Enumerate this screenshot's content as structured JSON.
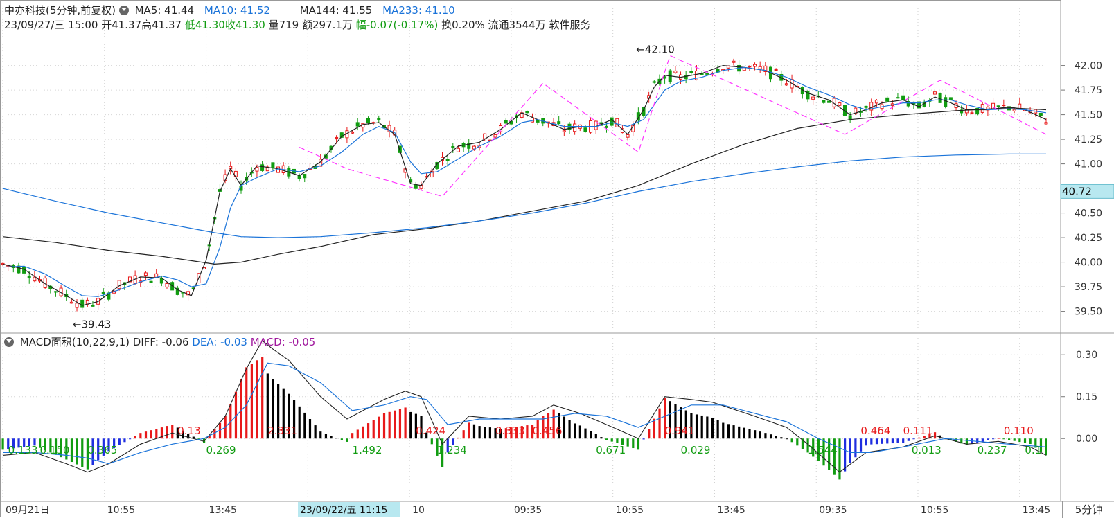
{
  "header": {
    "title": "中亦科技(5分钟,前复权)",
    "ma5": "MA5: 41.44",
    "ma10": "MA10: 41.52",
    "ma144": "MA144: 41.55",
    "ma233": "MA233: 41.10",
    "datetime": "23/09/27/三 15:00",
    "open": "开41.37",
    "high": "高41.37",
    "low": "低41.30",
    "close": "收41.30",
    "volume": "量719",
    "amount": "额297.1万",
    "change": "幅-0.07(-0.17%)",
    "turnover": "换0.20%",
    "float": "流通3544万",
    "sector": "软件服务"
  },
  "macd_header": {
    "name": "MACD面积(10,22,9,1)",
    "diff": "DIFF: -0.06",
    "dea": "DEA: -0.03",
    "macd": "MACD: -0.05"
  },
  "timeframe_tab": "5分钟",
  "cursor_price": "40.72",
  "cursor_date": "23/09/22/五 11:15",
  "colors": {
    "up": "#e8191a",
    "down": "#119c11",
    "ma_black": "#222222",
    "ma_blue": "#1a73d9",
    "macd_blue": "#1f2ee0",
    "zigzag": "#ff33ff",
    "cursor": "#b8e8f0"
  },
  "chart_data": {
    "type": "candlestick",
    "price_axis": {
      "ticks": [
        "42.00",
        "41.75",
        "41.50",
        "41.25",
        "41.00",
        "40.75",
        "40.50",
        "40.25",
        "40.00",
        "39.75",
        "39.50"
      ],
      "range": [
        39.3,
        42.3
      ]
    },
    "macd_axis": {
      "ticks": [
        "0.30",
        "0.15",
        "0.00"
      ],
      "range": [
        -0.22,
        0.36
      ]
    },
    "x_labels": [
      "09月21日",
      "10:55",
      "13:45",
      "09:35",
      "10",
      "09:35",
      "10:55",
      "13:45",
      "09:35",
      "10:55",
      "13:45",
      "09:35",
      "10:55",
      "13:45"
    ],
    "annotations": {
      "low": "39.43",
      "high": "42.10"
    },
    "series": [
      {
        "name": "MA5",
        "points": [
          [
            0,
            39.98
          ],
          [
            20,
            39.93
          ],
          [
            40,
            39.78
          ],
          [
            60,
            39.66
          ],
          [
            75,
            39.56
          ],
          [
            90,
            39.6
          ],
          [
            110,
            39.76
          ],
          [
            130,
            39.85
          ],
          [
            150,
            39.84
          ],
          [
            165,
            39.72
          ],
          [
            178,
            39.66
          ],
          [
            192,
            40.02
          ],
          [
            205,
            40.72
          ],
          [
            215,
            40.95
          ],
          [
            225,
            40.78
          ],
          [
            240,
            40.98
          ],
          [
            260,
            40.95
          ],
          [
            280,
            40.88
          ],
          [
            300,
            41.02
          ],
          [
            320,
            41.28
          ],
          [
            340,
            41.4
          ],
          [
            355,
            41.42
          ],
          [
            370,
            41.3
          ],
          [
            385,
            40.8
          ],
          [
            395,
            40.78
          ],
          [
            410,
            41.0
          ],
          [
            430,
            41.18
          ],
          [
            450,
            41.22
          ],
          [
            470,
            41.35
          ],
          [
            490,
            41.52
          ],
          [
            505,
            41.45
          ],
          [
            515,
            41.42
          ],
          [
            530,
            41.35
          ],
          [
            545,
            41.38
          ],
          [
            560,
            41.38
          ],
          [
            575,
            41.45
          ],
          [
            590,
            41.3
          ],
          [
            605,
            41.55
          ],
          [
            615,
            41.78
          ],
          [
            625,
            41.9
          ],
          [
            640,
            41.88
          ],
          [
            660,
            41.92
          ],
          [
            680,
            42.0
          ],
          [
            700,
            41.98
          ],
          [
            720,
            41.95
          ],
          [
            740,
            41.85
          ],
          [
            760,
            41.72
          ],
          [
            780,
            41.65
          ],
          [
            800,
            41.5
          ],
          [
            815,
            41.55
          ],
          [
            830,
            41.62
          ],
          [
            850,
            41.65
          ],
          [
            865,
            41.58
          ],
          [
            880,
            41.68
          ],
          [
            895,
            41.62
          ],
          [
            910,
            41.55
          ],
          [
            930,
            41.55
          ],
          [
            950,
            41.58
          ],
          [
            965,
            41.55
          ],
          [
            985,
            41.45
          ]
        ]
      },
      {
        "name": "MA10",
        "points": [
          [
            0,
            39.95
          ],
          [
            20,
            39.96
          ],
          [
            40,
            39.88
          ],
          [
            60,
            39.75
          ],
          [
            75,
            39.66
          ],
          [
            90,
            39.65
          ],
          [
            110,
            39.72
          ],
          [
            130,
            39.8
          ],
          [
            150,
            39.86
          ],
          [
            165,
            39.82
          ],
          [
            178,
            39.75
          ],
          [
            192,
            39.78
          ],
          [
            205,
            40.15
          ],
          [
            215,
            40.55
          ],
          [
            225,
            40.78
          ],
          [
            240,
            40.86
          ],
          [
            260,
            40.95
          ],
          [
            280,
            40.92
          ],
          [
            300,
            40.98
          ],
          [
            320,
            41.12
          ],
          [
            340,
            41.3
          ],
          [
            355,
            41.38
          ],
          [
            370,
            41.32
          ],
          [
            385,
            41.02
          ],
          [
            395,
            40.9
          ],
          [
            410,
            40.92
          ],
          [
            430,
            41.05
          ],
          [
            450,
            41.18
          ],
          [
            470,
            41.28
          ],
          [
            490,
            41.42
          ],
          [
            505,
            41.45
          ],
          [
            515,
            41.42
          ],
          [
            530,
            41.38
          ],
          [
            545,
            41.38
          ],
          [
            560,
            41.38
          ],
          [
            575,
            41.42
          ],
          [
            590,
            41.38
          ],
          [
            605,
            41.45
          ],
          [
            615,
            41.6
          ],
          [
            625,
            41.75
          ],
          [
            640,
            41.84
          ],
          [
            660,
            41.88
          ],
          [
            680,
            41.95
          ],
          [
            700,
            41.98
          ],
          [
            720,
            41.95
          ],
          [
            740,
            41.88
          ],
          [
            760,
            41.78
          ],
          [
            780,
            41.7
          ],
          [
            800,
            41.6
          ],
          [
            815,
            41.55
          ],
          [
            830,
            41.58
          ],
          [
            850,
            41.62
          ],
          [
            865,
            41.62
          ],
          [
            880,
            41.65
          ],
          [
            895,
            41.65
          ],
          [
            910,
            41.6
          ],
          [
            930,
            41.55
          ],
          [
            950,
            41.56
          ],
          [
            965,
            41.55
          ],
          [
            985,
            41.52
          ]
        ]
      },
      {
        "name": "MA144",
        "points": [
          [
            0,
            40.26
          ],
          [
            50,
            40.2
          ],
          [
            100,
            40.12
          ],
          [
            150,
            40.06
          ],
          [
            200,
            39.98
          ],
          [
            225,
            40.0
          ],
          [
            260,
            40.08
          ],
          [
            300,
            40.16
          ],
          [
            350,
            40.28
          ],
          [
            400,
            40.34
          ],
          [
            450,
            40.42
          ],
          [
            500,
            40.52
          ],
          [
            550,
            40.62
          ],
          [
            600,
            40.78
          ],
          [
            650,
            41.0
          ],
          [
            700,
            41.2
          ],
          [
            750,
            41.36
          ],
          [
            800,
            41.45
          ],
          [
            850,
            41.5
          ],
          [
            900,
            41.54
          ],
          [
            950,
            41.57
          ],
          [
            985,
            41.55
          ]
        ]
      },
      {
        "name": "MA233",
        "points": [
          [
            0,
            40.75
          ],
          [
            50,
            40.62
          ],
          [
            100,
            40.5
          ],
          [
            150,
            40.4
          ],
          [
            200,
            40.3
          ],
          [
            225,
            40.26
          ],
          [
            260,
            40.25
          ],
          [
            300,
            40.26
          ],
          [
            350,
            40.3
          ],
          [
            400,
            40.35
          ],
          [
            450,
            40.42
          ],
          [
            500,
            40.5
          ],
          [
            550,
            40.6
          ],
          [
            600,
            40.72
          ],
          [
            650,
            40.82
          ],
          [
            700,
            40.9
          ],
          [
            750,
            40.97
          ],
          [
            800,
            41.03
          ],
          [
            850,
            41.07
          ],
          [
            900,
            41.09
          ],
          [
            950,
            41.1
          ],
          [
            985,
            41.1
          ]
        ]
      }
    ],
    "zigzag": [
      [
        280,
        41.17
      ],
      [
        325,
        40.95
      ],
      [
        415,
        40.67
      ],
      [
        510,
        41.82
      ],
      [
        600,
        41.12
      ],
      [
        630,
        42.1
      ],
      [
        795,
        41.3
      ],
      [
        885,
        41.85
      ],
      [
        985,
        41.3
      ]
    ],
    "macd_diff": [
      [
        0,
        -0.06
      ],
      [
        30,
        -0.05
      ],
      [
        60,
        -0.09
      ],
      [
        80,
        -0.12
      ],
      [
        100,
        -0.09
      ],
      [
        130,
        -0.02
      ],
      [
        160,
        0.02
      ],
      [
        190,
        -0.01
      ],
      [
        210,
        0.08
      ],
      [
        230,
        0.25
      ],
      [
        245,
        0.35
      ],
      [
        255,
        0.32
      ],
      [
        270,
        0.28
      ],
      [
        300,
        0.15
      ],
      [
        325,
        0.07
      ],
      [
        360,
        0.14
      ],
      [
        380,
        0.17
      ],
      [
        395,
        0.15
      ],
      [
        415,
        -0.02
      ],
      [
        440,
        0.08
      ],
      [
        470,
        0.07
      ],
      [
        500,
        0.08
      ],
      [
        520,
        0.12
      ],
      [
        545,
        0.09
      ],
      [
        570,
        0.05
      ],
      [
        600,
        0.0
      ],
      [
        625,
        0.15
      ],
      [
        650,
        0.14
      ],
      [
        670,
        0.13
      ],
      [
        710,
        0.08
      ],
      [
        740,
        0.04
      ],
      [
        760,
        -0.02
      ],
      [
        790,
        -0.12
      ],
      [
        815,
        -0.05
      ],
      [
        850,
        -0.03
      ],
      [
        880,
        0.01
      ],
      [
        910,
        -0.02
      ],
      [
        940,
        -0.01
      ],
      [
        970,
        -0.03
      ],
      [
        985,
        -0.06
      ]
    ],
    "macd_dea": [
      [
        0,
        -0.05
      ],
      [
        30,
        -0.05
      ],
      [
        60,
        -0.06
      ],
      [
        80,
        -0.07
      ],
      [
        100,
        -0.09
      ],
      [
        130,
        -0.05
      ],
      [
        160,
        -0.02
      ],
      [
        190,
        0.0
      ],
      [
        210,
        0.04
      ],
      [
        230,
        0.12
      ],
      [
        250,
        0.27
      ],
      [
        270,
        0.26
      ],
      [
        300,
        0.2
      ],
      [
        330,
        0.1
      ],
      [
        360,
        0.12
      ],
      [
        385,
        0.15
      ],
      [
        400,
        0.14
      ],
      [
        420,
        0.05
      ],
      [
        450,
        0.07
      ],
      [
        480,
        0.07
      ],
      [
        510,
        0.07
      ],
      [
        540,
        0.09
      ],
      [
        570,
        0.08
      ],
      [
        600,
        0.04
      ],
      [
        625,
        0.08
      ],
      [
        650,
        0.12
      ],
      [
        680,
        0.12
      ],
      [
        710,
        0.09
      ],
      [
        740,
        0.06
      ],
      [
        770,
        0.0
      ],
      [
        800,
        -0.05
      ],
      [
        820,
        -0.05
      ],
      [
        850,
        -0.03
      ],
      [
        890,
        0.0
      ],
      [
        920,
        -0.01
      ],
      [
        950,
        -0.02
      ],
      [
        985,
        -0.03
      ]
    ],
    "macd_labels": [
      {
        "t": "0.133",
        "c": "dn"
      },
      {
        "t": "0.150",
        "c": "dn"
      },
      {
        "t": "0.365",
        "c": "dn"
      },
      {
        "t": "0.13",
        "c": "up"
      },
      {
        "t": "0.269",
        "c": "dn"
      },
      {
        "t": "2.331",
        "c": "up"
      },
      {
        "t": "1.492",
        "c": "dn"
      },
      {
        "t": "0.424",
        "c": "up"
      },
      {
        "t": "1.234",
        "c": "dn"
      },
      {
        "t": "0.333",
        "c": "up"
      },
      {
        "t": "0.456",
        "c": "up"
      },
      {
        "t": "0.671",
        "c": "dn"
      },
      {
        "t": "0.941",
        "c": "up"
      },
      {
        "t": "0.029",
        "c": "dn"
      },
      {
        "t": "1.544",
        "c": "dn"
      },
      {
        "t": "0.464",
        "c": "up"
      },
      {
        "t": "0.111",
        "c": "up"
      },
      {
        "t": "0.013",
        "c": "dn"
      },
      {
        "t": "0.237",
        "c": "dn"
      },
      {
        "t": "0.110",
        "c": "up"
      },
      {
        "t": "0.1",
        "c": "dn"
      }
    ]
  }
}
